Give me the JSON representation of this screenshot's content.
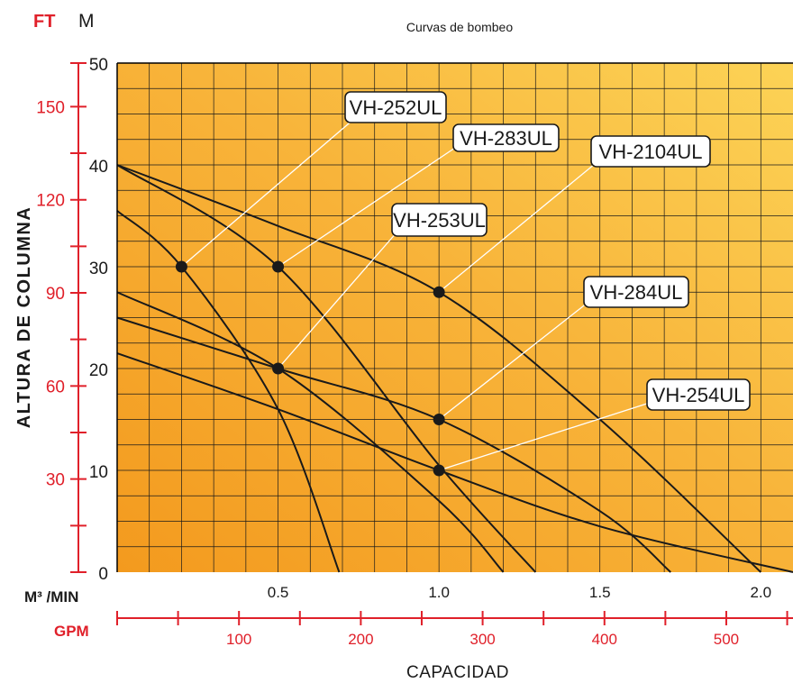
{
  "chart_data": {
    "type": "line",
    "title": "Curvas de bombeo",
    "ylabel": "ALTURA DE COLUMNA",
    "xlabel": "CAPACIDAD",
    "y_unit_ft": "FT",
    "y_unit_m": "M",
    "x_unit_m3": "M³ /MIN",
    "x_unit_gpm": "GPM",
    "ylim_m": [
      0,
      50
    ],
    "xlim_m3min": [
      0,
      2.1
    ],
    "y_ticks_m": [
      "0",
      "10",
      "20",
      "30",
      "40",
      "50"
    ],
    "y_ticks_ft": [
      "30",
      "60",
      "90",
      "120",
      "150"
    ],
    "x_ticks_m3": [
      "0.5",
      "1.0",
      "1.5",
      "2.0"
    ],
    "x_ticks_gpm": [
      "100",
      "200",
      "300",
      "400",
      "500"
    ],
    "grid": true,
    "series": [
      {
        "name": "VH-252UL",
        "x": [
          0,
          0.2,
          0.5,
          0.69
        ],
        "y": [
          35.5,
          30,
          16,
          0
        ]
      },
      {
        "name": "VH-253UL",
        "x": [
          0,
          0.5,
          1.0,
          1.2
        ],
        "y": [
          27.5,
          20,
          7,
          0
        ]
      },
      {
        "name": "VH-254UL",
        "x": [
          0,
          0.5,
          1.0,
          1.5,
          2.1
        ],
        "y": [
          21.5,
          16,
          10,
          4.5,
          0
        ]
      },
      {
        "name": "VH-283UL",
        "x": [
          0,
          0.5,
          1.0,
          1.3
        ],
        "y": [
          40,
          30,
          10.5,
          0
        ]
      },
      {
        "name": "VH-284UL",
        "x": [
          0,
          0.5,
          1.0,
          1.5,
          1.72
        ],
        "y": [
          25,
          20,
          15,
          6,
          0
        ]
      },
      {
        "name": "VH-2104UL",
        "x": [
          0,
          0.5,
          1.0,
          1.5,
          2.0
        ],
        "y": [
          40,
          34,
          27.5,
          15,
          0
        ]
      }
    ],
    "markers": [
      {
        "label": "VH-252UL",
        "x": 0.2,
        "y": 30
      },
      {
        "label": "VH-283UL",
        "x": 0.5,
        "y": 30
      },
      {
        "label": "VH-2104UL",
        "x": 1.0,
        "y": 27.5
      },
      {
        "label": "VH-253UL",
        "x": 0.5,
        "y": 20
      },
      {
        "label": "VH-284UL",
        "x": 1.0,
        "y": 15
      },
      {
        "label": "VH-254UL",
        "x": 1.0,
        "y": 10
      }
    ]
  }
}
